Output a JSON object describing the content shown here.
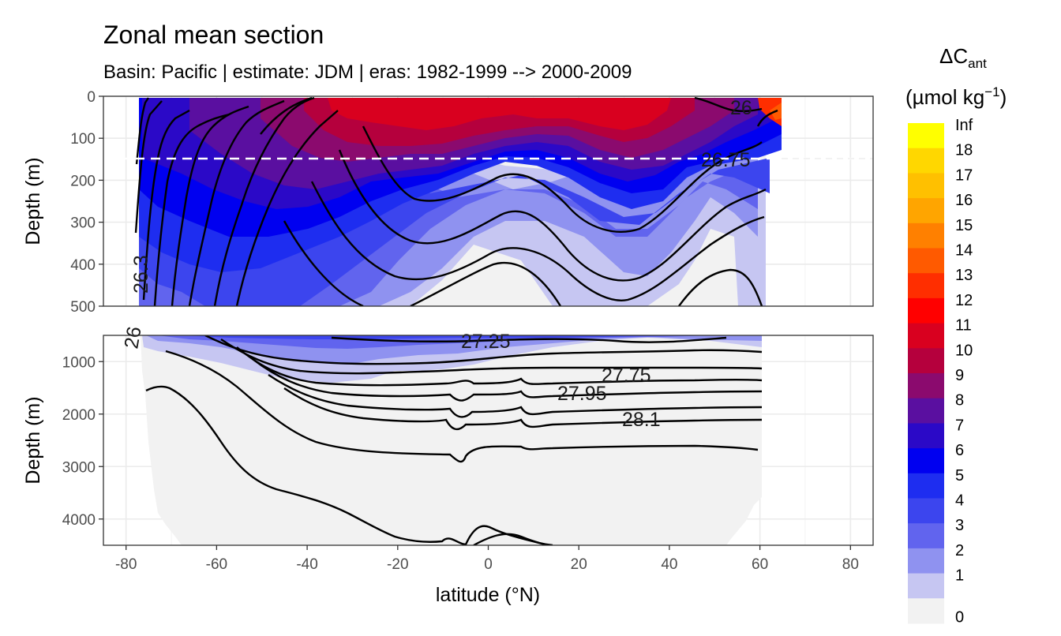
{
  "chart_data": {
    "type": "heatmap",
    "title": "Zonal mean section",
    "subtitle": "Basin: Pacific | estimate: JDM  | eras: 1982-1999 --> 2000-2009",
    "xlabel": "latitude (°N)",
    "ylabel": "Depth (m)",
    "x_ticks": [
      "-80",
      "-60",
      "-40",
      "-20",
      "0",
      "20",
      "40",
      "60",
      "80"
    ],
    "xlim": [
      -85,
      85
    ],
    "panels": [
      {
        "name": "upper",
        "ylim": [
          500,
          0
        ],
        "y_ticks": [
          "0",
          "100",
          "200",
          "300",
          "400",
          "500"
        ],
        "reference_line_depth": 150
      },
      {
        "name": "lower",
        "ylim": [
          4500,
          500
        ],
        "y_ticks": [
          "1000",
          "2000",
          "3000",
          "4000"
        ]
      }
    ],
    "contour_labels": [
      "26",
      "26.75",
      "26.3",
      "27.25",
      "27.75",
      "27.95",
      "28.1",
      "26"
    ],
    "legend": {
      "title_main": "ΔC",
      "title_sub": "ant",
      "title_units": "(µmol kg",
      "title_exp": "−1",
      "title_close": ")",
      "breaks": [
        "Inf",
        "18",
        "17",
        "16",
        "15",
        "14",
        "13",
        "12",
        "11",
        "10",
        "9",
        "8",
        "7",
        "6",
        "5",
        "4",
        "3",
        "2",
        "1",
        "0"
      ],
      "colors": [
        "#ffff00",
        "#ffd700",
        "#ffc000",
        "#ffa500",
        "#ff8000",
        "#ff5a00",
        "#ff2e00",
        "#ff0000",
        "#d9001f",
        "#b5003d",
        "#8b0a6e",
        "#5a0fa0",
        "#2b09c7",
        "#0000f0",
        "#1e2df0",
        "#3c45ee",
        "#6164ee",
        "#8f92f0",
        "#c6c6f2",
        "#f2f2f2"
      ]
    }
  }
}
